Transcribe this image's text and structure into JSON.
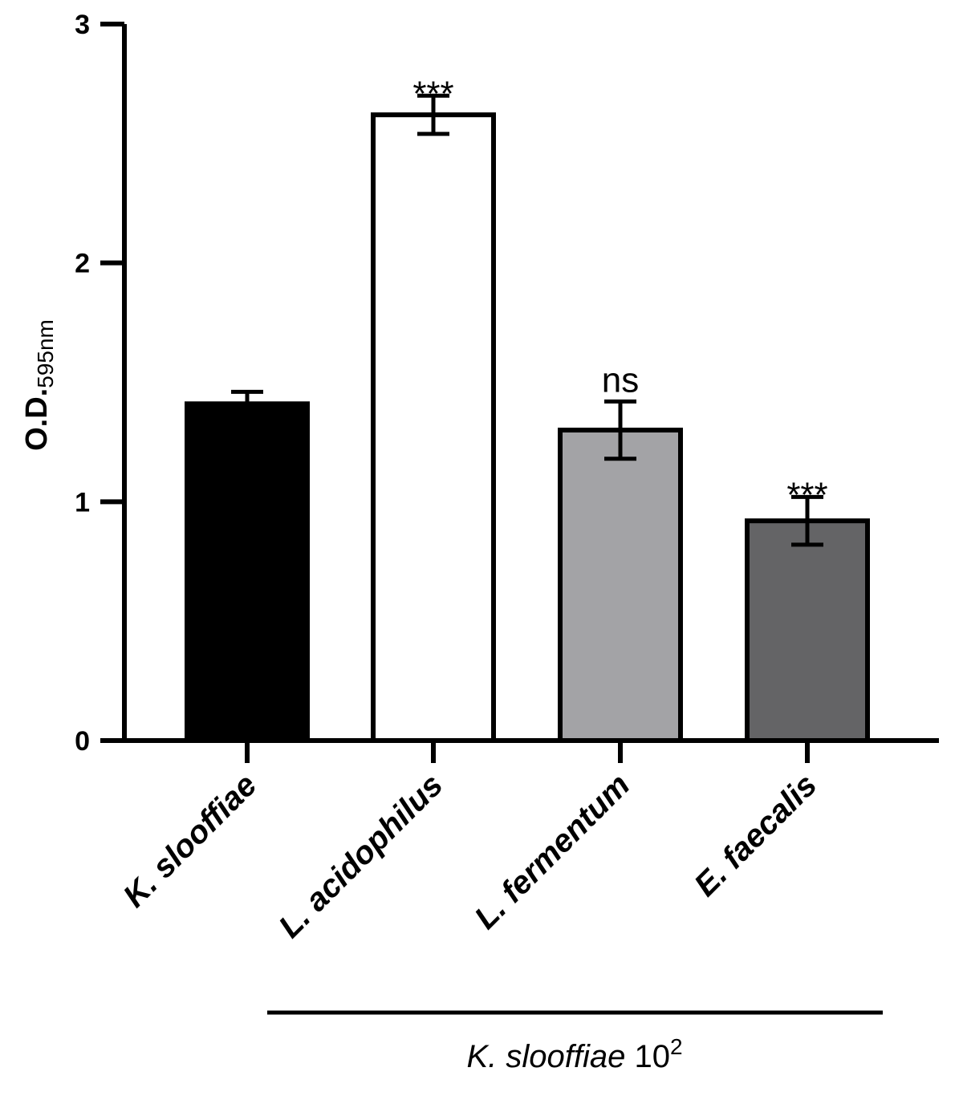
{
  "chart_data": {
    "type": "bar",
    "categories": [
      "K. slooffiae",
      "L. acidophilus",
      "L. fermentum",
      "E. faecalis"
    ],
    "values": [
      1.41,
      2.62,
      1.3,
      0.92
    ],
    "errors": [
      0.05,
      0.08,
      0.12,
      0.1
    ],
    "significance": [
      "",
      "***",
      "ns",
      "***"
    ],
    "bar_colors": [
      "#000000",
      "#ffffff",
      "#a3a3a6",
      "#646466"
    ],
    "ylabel": "O.D.",
    "ylabel_sub": "595nm",
    "ylim": [
      0,
      3
    ],
    "yticks": [
      "0",
      "1",
      "2",
      "3"
    ],
    "grid": false,
    "group_label": {
      "species": "K. slooffiae",
      "base": "10",
      "exponent": "2"
    }
  }
}
